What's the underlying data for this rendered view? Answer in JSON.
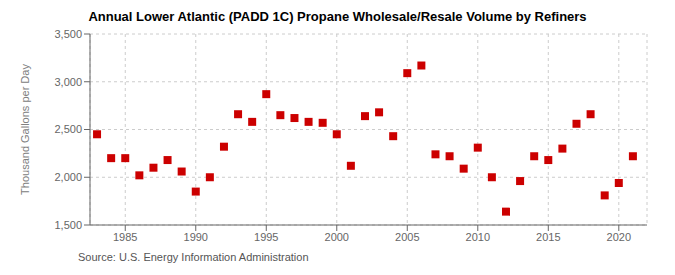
{
  "chart_data": {
    "type": "scatter",
    "title": "Annual Lower Atlantic (PADD 1C) Propane Wholesale/Resale Volume by Refiners",
    "ylabel": "Thousand Gallons per Day",
    "annotation": "Source: U.S. Energy Information Administration",
    "x": [
      1983,
      1984,
      1985,
      1986,
      1987,
      1988,
      1989,
      1990,
      1991,
      1992,
      1993,
      1994,
      1995,
      1996,
      1997,
      1998,
      1999,
      2000,
      2001,
      2002,
      2003,
      2004,
      2005,
      2006,
      2007,
      2008,
      2009,
      2010,
      2011,
      2012,
      2013,
      2014,
      2015,
      2016,
      2017,
      2018,
      2019,
      2020,
      2021
    ],
    "values": [
      2450,
      2200,
      2200,
      2020,
      2100,
      2180,
      2060,
      1850,
      2000,
      2320,
      2660,
      2580,
      2870,
      2650,
      2620,
      2580,
      2570,
      2450,
      2120,
      2640,
      2680,
      2430,
      3090,
      3170,
      2240,
      2220,
      2090,
      2310,
      2000,
      1640,
      1960,
      2220,
      2180,
      2300,
      2560,
      2660,
      1810,
      1940,
      2220
    ],
    "color": "#cc0000",
    "marker": "square",
    "xlim": [
      1982.5,
      2022
    ],
    "xticks": [
      1985,
      1990,
      1995,
      2000,
      2005,
      2010,
      2015,
      2020
    ],
    "ylim": [
      1500,
      3500
    ],
    "yticks": [
      {
        "value": 1500,
        "label": "1,500"
      },
      {
        "value": 2000,
        "label": "2,000"
      },
      {
        "value": 2500,
        "label": "2,500"
      },
      {
        "value": 3000,
        "label": "3,000"
      },
      {
        "value": 3500,
        "label": "3,500"
      }
    ],
    "grid": true
  }
}
